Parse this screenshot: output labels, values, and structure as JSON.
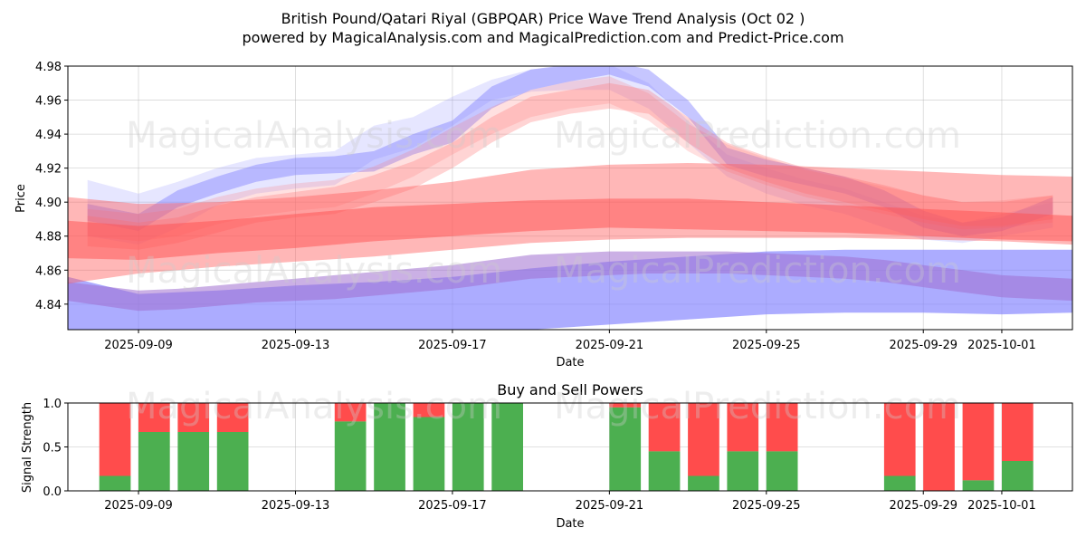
{
  "page": {
    "title_line1": "British Pound/Qatari Riyal (GBPQAR) Price Wave Trend Analysis (Oct 02 )",
    "title_line2": "powered by MagicalAnalysis.com and MagicalPrediction.com and Predict-Price.com",
    "watermarks": [
      "MagicalAnalysis.com",
      "MagicalPrediction.com"
    ]
  },
  "chart_data": [
    {
      "type": "area",
      "title": "",
      "xlabel": "Date",
      "ylabel": "Price",
      "xlim": [
        -1.8,
        23.8
      ],
      "ylim": [
        4.825,
        4.98
      ],
      "x_ticks": [
        {
          "x": 0,
          "label": "2025-09-09"
        },
        {
          "x": 4,
          "label": "2025-09-13"
        },
        {
          "x": 8,
          "label": "2025-09-17"
        },
        {
          "x": 12,
          "label": "2025-09-21"
        },
        {
          "x": 16,
          "label": "2025-09-25"
        },
        {
          "x": 20,
          "label": "2025-09-29"
        },
        {
          "x": 22,
          "label": "2025-10-01"
        }
      ],
      "y_ticks": [
        "4.84",
        "4.86",
        "4.88",
        "4.90",
        "4.92",
        "4.94",
        "4.96",
        "4.98"
      ],
      "grid": true,
      "blue_bands": [
        {
          "name": "blue-short-wave-1",
          "x": [
            -1.3,
            0,
            1,
            2,
            3,
            4,
            5,
            6,
            7,
            8,
            9,
            10,
            11,
            12,
            13,
            14,
            15,
            16,
            17,
            18,
            19,
            20,
            21,
            22,
            23.3
          ],
          "low": [
            4.889,
            4.883,
            4.897,
            4.905,
            4.912,
            4.916,
            4.917,
            4.918,
            4.928,
            4.935,
            4.955,
            4.966,
            4.971,
            4.975,
            4.968,
            4.95,
            4.922,
            4.915,
            4.91,
            4.905,
            4.897,
            4.885,
            4.88,
            4.883,
            4.893
          ],
          "high": [
            4.899,
            4.893,
            4.907,
            4.915,
            4.922,
            4.926,
            4.927,
            4.93,
            4.94,
            4.948,
            4.968,
            4.978,
            4.981,
            4.983,
            4.978,
            4.96,
            4.932,
            4.925,
            4.92,
            4.915,
            4.907,
            4.895,
            4.888,
            4.891,
            4.903
          ],
          "color": "#8080ff",
          "opacity": 0.45
        },
        {
          "name": "blue-short-wave-2",
          "x": [
            -1.3,
            0,
            1,
            2,
            3,
            4,
            5,
            6,
            7,
            8,
            9,
            10,
            11,
            12,
            13,
            14,
            15,
            16,
            17,
            18,
            19,
            20,
            21,
            22,
            23.3
          ],
          "low": [
            4.88,
            4.875,
            4.885,
            4.898,
            4.905,
            4.908,
            4.91,
            4.925,
            4.932,
            4.945,
            4.96,
            4.965,
            4.966,
            4.966,
            4.955,
            4.935,
            4.915,
            4.905,
            4.898,
            4.893,
            4.885,
            4.878,
            4.876,
            4.88,
            4.885
          ],
          "high": [
            4.913,
            4.905,
            4.912,
            4.92,
            4.926,
            4.928,
            4.93,
            4.945,
            4.95,
            4.962,
            4.972,
            4.978,
            4.98,
            4.981,
            4.97,
            4.948,
            4.928,
            4.92,
            4.913,
            4.908,
            4.9,
            4.892,
            4.888,
            4.893,
            4.9
          ],
          "color": "#8080ff",
          "opacity": 0.2
        },
        {
          "name": "blue-long-wave",
          "x": [
            -1.8,
            0,
            2,
            4,
            6,
            8,
            10,
            12,
            14,
            16,
            18,
            20,
            22,
            23.8
          ],
          "low": [
            4.815,
            4.816,
            4.818,
            4.82,
            4.822,
            4.823,
            4.825,
            4.828,
            4.831,
            4.834,
            4.835,
            4.835,
            4.834,
            4.835
          ],
          "high": [
            4.856,
            4.846,
            4.848,
            4.851,
            4.853,
            4.856,
            4.861,
            4.865,
            4.868,
            4.871,
            4.872,
            4.872,
            4.872,
            4.872
          ],
          "color": "#8080ff",
          "opacity": 0.65
        }
      ],
      "red_bands": [
        {
          "name": "red-short-wave-1",
          "x": [
            -1.3,
            0,
            1,
            2,
            3,
            4,
            5,
            6,
            7,
            8,
            9,
            10,
            11,
            12,
            13,
            14,
            15,
            16,
            17,
            18,
            19,
            20,
            21,
            22,
            23.3
          ],
          "low": [
            4.874,
            4.872,
            4.876,
            4.882,
            4.888,
            4.891,
            4.893,
            4.9,
            4.908,
            4.92,
            4.935,
            4.947,
            4.952,
            4.955,
            4.952,
            4.935,
            4.92,
            4.912,
            4.905,
            4.9,
            4.895,
            4.89,
            4.886,
            4.886,
            4.89
          ],
          "high": [
            4.892,
            4.888,
            4.891,
            4.898,
            4.903,
            4.906,
            4.909,
            4.916,
            4.924,
            4.935,
            4.95,
            4.962,
            4.966,
            4.97,
            4.966,
            4.95,
            4.935,
            4.927,
            4.92,
            4.915,
            4.91,
            4.904,
            4.9,
            4.9,
            4.904
          ],
          "color": "#ff7070",
          "opacity": 0.3
        },
        {
          "name": "red-short-wave-2",
          "x": [
            -1.3,
            0,
            1,
            2,
            3,
            4,
            5,
            6,
            7,
            8,
            9,
            10,
            11,
            12,
            13,
            14,
            15,
            16,
            17,
            18,
            19,
            20,
            21,
            22,
            23.3
          ],
          "low": [
            4.88,
            4.877,
            4.88,
            4.887,
            4.892,
            4.895,
            4.897,
            4.905,
            4.915,
            4.928,
            4.94,
            4.95,
            4.955,
            4.958,
            4.948,
            4.93,
            4.918,
            4.91,
            4.903,
            4.898,
            4.893,
            4.888,
            4.884,
            4.885,
            4.888
          ],
          "high": [
            4.896,
            4.893,
            4.896,
            4.903,
            4.908,
            4.911,
            4.913,
            4.921,
            4.931,
            4.944,
            4.956,
            4.966,
            4.971,
            4.974,
            4.964,
            4.946,
            4.934,
            4.926,
            4.919,
            4.914,
            4.909,
            4.904,
            4.9,
            4.901,
            4.904
          ],
          "color": "#ff7070",
          "opacity": 0.22
        },
        {
          "name": "red-mid-wave",
          "x": [
            -1.8,
            0,
            2,
            4,
            6,
            8,
            10,
            12,
            14,
            16,
            18,
            20,
            22,
            23.8
          ],
          "low": [
            4.852,
            4.858,
            4.862,
            4.865,
            4.868,
            4.872,
            4.876,
            4.878,
            4.879,
            4.879,
            4.879,
            4.878,
            4.877,
            4.875
          ],
          "high": [
            4.903,
            4.899,
            4.9,
            4.903,
            4.907,
            4.912,
            4.919,
            4.922,
            4.923,
            4.922,
            4.92,
            4.918,
            4.916,
            4.915
          ],
          "color": "#ff6060",
          "opacity": 0.45
        },
        {
          "name": "red-long-wave",
          "x": [
            -1.8,
            0,
            2,
            4,
            6,
            8,
            10,
            12,
            14,
            16,
            18,
            20,
            22,
            23.8
          ],
          "low": [
            4.867,
            4.866,
            4.87,
            4.873,
            4.877,
            4.88,
            4.883,
            4.885,
            4.884,
            4.883,
            4.882,
            4.88,
            4.878,
            4.877
          ],
          "high": [
            4.889,
            4.886,
            4.889,
            4.893,
            4.897,
            4.899,
            4.901,
            4.902,
            4.902,
            4.9,
            4.898,
            4.896,
            4.894,
            4.892
          ],
          "color": "#ff5050",
          "opacity": 0.5
        }
      ],
      "purple_band": {
        "name": "purple-overlap-wave",
        "x": [
          -1.8,
          0,
          1,
          2,
          3,
          4,
          5,
          6,
          7,
          8,
          9,
          10,
          11,
          12,
          13,
          14,
          15,
          16,
          17,
          18,
          19,
          20,
          21,
          22,
          23.8
        ],
        "low": [
          4.842,
          4.836,
          4.837,
          4.839,
          4.841,
          4.842,
          4.843,
          4.845,
          4.847,
          4.849,
          4.852,
          4.855,
          4.856,
          4.857,
          4.858,
          4.858,
          4.858,
          4.857,
          4.856,
          4.855,
          4.853,
          4.85,
          4.847,
          4.844,
          4.842
        ],
        "high": [
          4.853,
          4.848,
          4.849,
          4.851,
          4.853,
          4.855,
          4.857,
          4.859,
          4.861,
          4.863,
          4.866,
          4.869,
          4.87,
          4.871,
          4.871,
          4.871,
          4.871,
          4.87,
          4.869,
          4.868,
          4.866,
          4.863,
          4.86,
          4.857,
          4.855
        ],
        "color": "#a070d0",
        "opacity": 0.55
      }
    },
    {
      "type": "bar",
      "title": "Buy and Sell Powers",
      "xlabel": "Date",
      "ylabel": "Signal Strength",
      "xlim": [
        -1.8,
        23.8
      ],
      "ylim": [
        0,
        1.0
      ],
      "x_ticks": [
        {
          "x": 0,
          "label": "2025-09-09"
        },
        {
          "x": 4,
          "label": "2025-09-13"
        },
        {
          "x": 8,
          "label": "2025-09-17"
        },
        {
          "x": 12,
          "label": "2025-09-21"
        },
        {
          "x": 16,
          "label": "2025-09-25"
        },
        {
          "x": 20,
          "label": "2025-09-29"
        },
        {
          "x": 22,
          "label": "2025-10-01"
        }
      ],
      "y_ticks": [
        "0.0",
        "0.5",
        "1.0"
      ],
      "grid": true,
      "series": [
        {
          "name": "Buy",
          "color": "#4caf50"
        },
        {
          "name": "Sell",
          "color": "#ff4c4c"
        }
      ],
      "bars": [
        {
          "x": -0.6,
          "buy": 0.17
        },
        {
          "x": 0.4,
          "buy": 0.67
        },
        {
          "x": 1.4,
          "buy": 0.67
        },
        {
          "x": 2.4,
          "buy": 0.67
        },
        {
          "x": 5.4,
          "buy": 0.79
        },
        {
          "x": 6.4,
          "buy": 1.0
        },
        {
          "x": 7.4,
          "buy": 0.84
        },
        {
          "x": 8.4,
          "buy": 1.0
        },
        {
          "x": 9.4,
          "buy": 1.0
        },
        {
          "x": 12.4,
          "buy": 0.95
        },
        {
          "x": 13.4,
          "buy": 0.45
        },
        {
          "x": 14.4,
          "buy": 0.17
        },
        {
          "x": 15.4,
          "buy": 0.45
        },
        {
          "x": 16.4,
          "buy": 0.45
        },
        {
          "x": 19.4,
          "buy": 0.17
        },
        {
          "x": 20.4,
          "buy": 0.0
        },
        {
          "x": 21.4,
          "buy": 0.12
        },
        {
          "x": 22.4,
          "buy": 0.34
        }
      ]
    }
  ]
}
